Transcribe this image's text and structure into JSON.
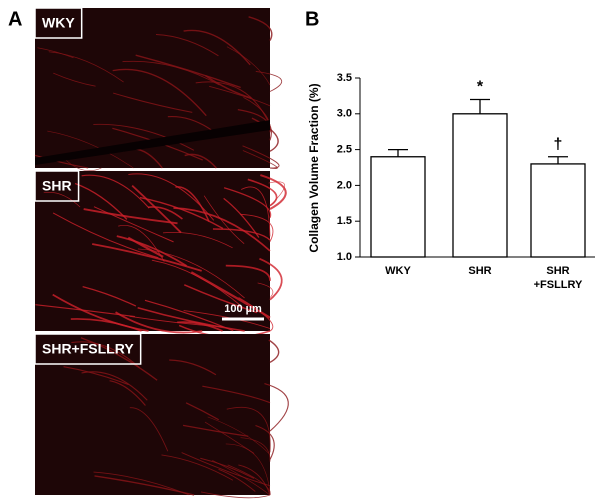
{
  "figure": {
    "panel_a_label": "A",
    "panel_b_label": "B",
    "images": [
      {
        "label": "WKY"
      },
      {
        "label": "SHR",
        "scale_bar": "100 µm"
      },
      {
        "label": "SHR+FSLLRY"
      }
    ]
  },
  "chart_data": {
    "type": "bar",
    "y_label": "Collagen Volume Fraction (%)",
    "categories": [
      [
        "WKY"
      ],
      [
        "SHR"
      ],
      [
        "SHR",
        "+FSLLRY"
      ]
    ],
    "values": [
      2.4,
      3.0,
      2.3
    ],
    "errors": [
      0.1,
      0.2,
      0.1
    ],
    "annotations": [
      "",
      "*",
      "†"
    ],
    "color": "#ffffff",
    "ylim": [
      1.0,
      3.5
    ],
    "yticks": [
      {
        "value": 1.0,
        "label": "1.0"
      },
      {
        "value": 1.5,
        "label": "1.5"
      },
      {
        "value": 2.0,
        "label": "2.0"
      },
      {
        "value": 2.5,
        "label": "2.5"
      },
      {
        "value": 3.0,
        "label": "3.0"
      },
      {
        "value": 3.5,
        "label": "3.5"
      }
    ],
    "grid": false
  }
}
